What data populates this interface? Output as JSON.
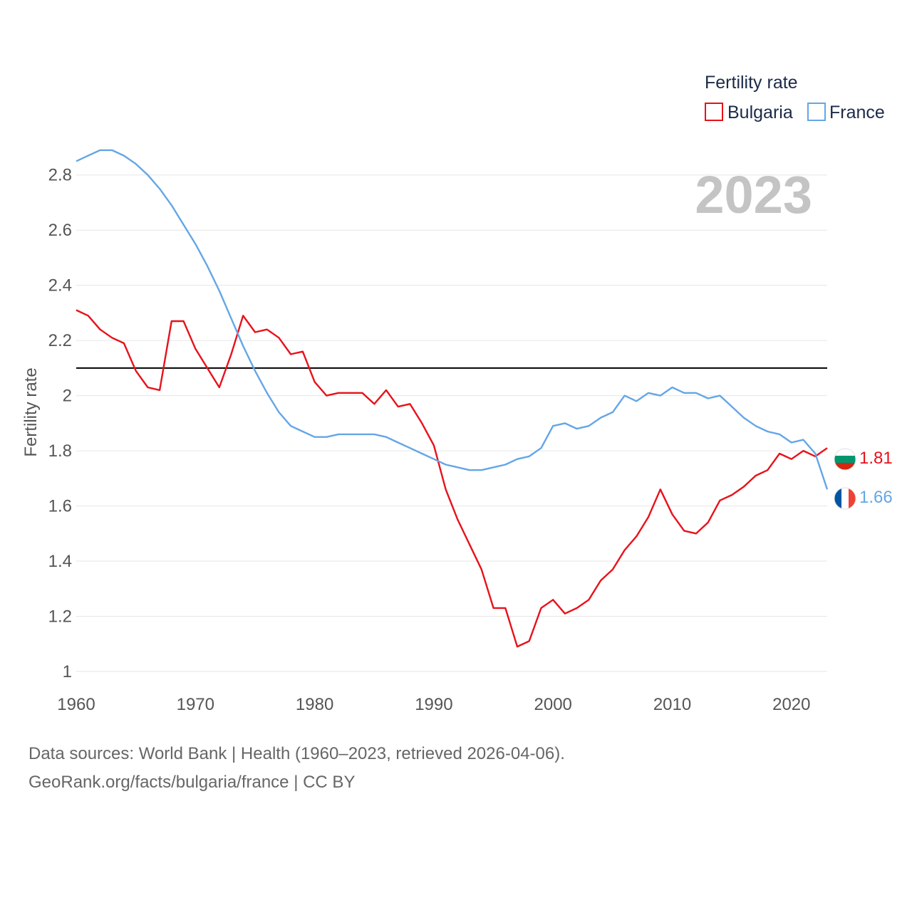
{
  "chart_data": {
    "type": "line",
    "legend": {
      "title": "Fertility rate",
      "position": "top-right"
    },
    "year_label": "2023",
    "ylabel": "Fertility rate",
    "xlabel": "",
    "xlim": [
      1960,
      2023
    ],
    "ylim": [
      1,
      2.9
    ],
    "x_ticks": [
      1960,
      1970,
      1980,
      1990,
      2000,
      2010,
      2020
    ],
    "y_ticks": [
      1,
      1.2,
      1.4,
      1.6,
      1.8,
      2,
      2.2,
      2.4,
      2.6,
      2.8
    ],
    "y_tick_labels": [
      "1",
      "1.2",
      "1.4",
      "1.6",
      "1.8",
      "2",
      "2.2",
      "2.4",
      "2.6",
      "2.8"
    ],
    "reference_line": {
      "value": 2.1,
      "color": "#000000"
    },
    "series": [
      {
        "name": "Bulgaria",
        "color": "#e8111a",
        "end_label": "1.81",
        "flag": "bulgaria-flag",
        "x_start": 1960,
        "values": [
          2.31,
          2.29,
          2.24,
          2.21,
          2.19,
          2.09,
          2.03,
          2.02,
          2.27,
          2.27,
          2.17,
          2.1,
          2.03,
          2.15,
          2.29,
          2.23,
          2.24,
          2.21,
          2.15,
          2.16,
          2.05,
          2.0,
          2.01,
          2.01,
          2.01,
          1.97,
          2.02,
          1.96,
          1.97,
          1.9,
          1.82,
          1.66,
          1.55,
          1.46,
          1.37,
          1.23,
          1.23,
          1.09,
          1.11,
          1.23,
          1.26,
          1.21,
          1.23,
          1.26,
          1.33,
          1.37,
          1.44,
          1.49,
          1.56,
          1.66,
          1.57,
          1.51,
          1.5,
          1.54,
          1.62,
          1.64,
          1.67,
          1.71,
          1.73,
          1.79,
          1.77,
          1.8,
          1.78,
          1.81
        ]
      },
      {
        "name": "France",
        "color": "#64a6e6",
        "end_label": "1.66",
        "flag": "france-flag",
        "x_start": 1960,
        "values": [
          2.85,
          2.87,
          2.89,
          2.89,
          2.87,
          2.84,
          2.8,
          2.75,
          2.69,
          2.62,
          2.55,
          2.47,
          2.38,
          2.28,
          2.18,
          2.09,
          2.01,
          1.94,
          1.89,
          1.87,
          1.85,
          1.85,
          1.86,
          1.86,
          1.86,
          1.86,
          1.85,
          1.83,
          1.81,
          1.79,
          1.77,
          1.75,
          1.74,
          1.73,
          1.73,
          1.74,
          1.75,
          1.77,
          1.78,
          1.81,
          1.89,
          1.9,
          1.88,
          1.89,
          1.92,
          1.94,
          2.0,
          1.98,
          2.01,
          2.0,
          2.03,
          2.01,
          2.01,
          1.99,
          2.0,
          1.96,
          1.92,
          1.89,
          1.87,
          1.86,
          1.83,
          1.84,
          1.79,
          1.66
        ]
      }
    ]
  },
  "footer": {
    "source_line": "Data sources: World Bank | Health (1960–2023, retrieved 2026-04-06).",
    "url_line": "GeoRank.org/facts/bulgaria/france | CC BY"
  }
}
